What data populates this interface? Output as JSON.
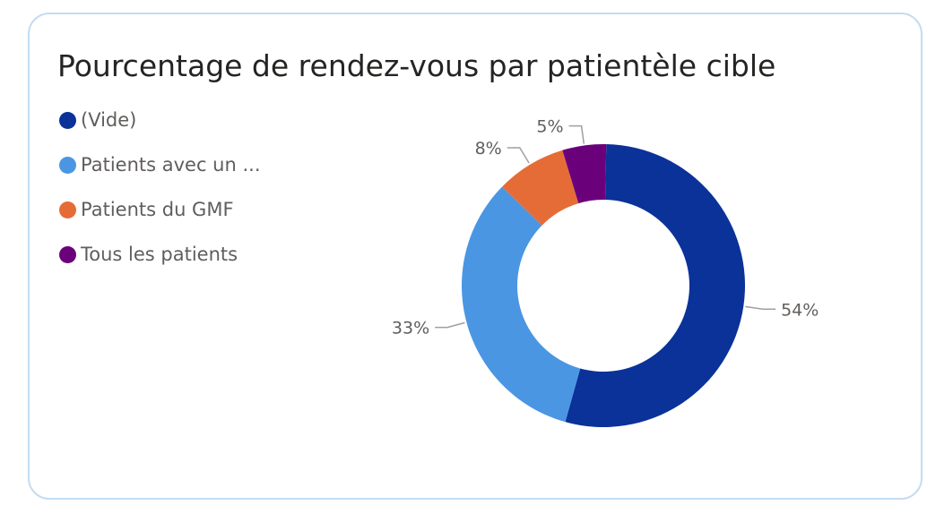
{
  "card": {
    "title": "Pourcentage de rendez-vous par patientèle cible"
  },
  "legend": [
    {
      "label": "(Vide)",
      "color": "#0a3299"
    },
    {
      "label": "Patients avec un ...",
      "color": "#4a96e3"
    },
    {
      "label": "Patients du GMF",
      "color": "#e66c37"
    },
    {
      "label": "Tous les patients",
      "color": "#6b007b"
    }
  ],
  "chart_data": {
    "type": "pie",
    "donut": true,
    "title": "Pourcentage de rendez-vous par patientèle cible",
    "categories": [
      "(Vide)",
      "Patients avec un ...",
      "Patients du GMF",
      "Tous les patients"
    ],
    "values": [
      54,
      33,
      8,
      5
    ],
    "labels": [
      "54%",
      "33%",
      "8%",
      "5%"
    ],
    "colors": [
      "#0a3299",
      "#4a96e3",
      "#e66c37",
      "#6b007b"
    ],
    "legend_position": "top-left"
  }
}
